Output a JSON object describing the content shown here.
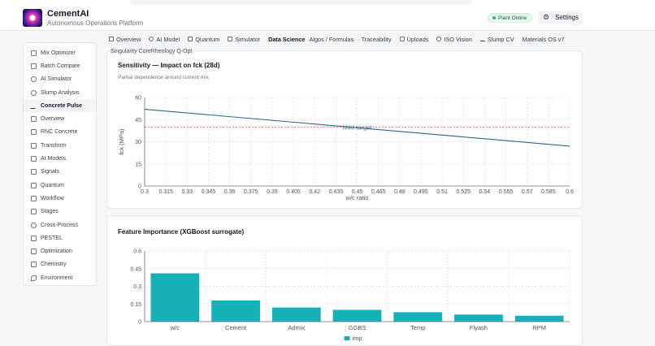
{
  "app": {
    "title": "CementAI",
    "subtitle": "Autonomous Operations Platform",
    "status": "Plant Online",
    "settings_label": "Settings"
  },
  "sidebar": {
    "items": [
      {
        "label": "Mix Optimizer",
        "icon": "file-icon"
      },
      {
        "label": "Batch Compare",
        "icon": "compare-icon"
      },
      {
        "label": "AI Simulator",
        "icon": "play-icon"
      },
      {
        "label": "Slump Analysis",
        "icon": "gauge-icon"
      },
      {
        "label": "Concrete Pulse",
        "icon": "pulse-icon",
        "active": true
      },
      {
        "label": "Overview",
        "icon": "grid-icon"
      },
      {
        "label": "RNC Concrete",
        "icon": "grid-icon"
      },
      {
        "label": "Transform",
        "icon": "file-icon"
      },
      {
        "label": "AI Models",
        "icon": "grid-icon"
      },
      {
        "label": "Signals",
        "icon": "grid-icon"
      },
      {
        "label": "Quantum",
        "icon": "grid-icon"
      },
      {
        "label": "Workflow",
        "icon": "workflow-icon"
      },
      {
        "label": "Stages",
        "icon": "layers-icon"
      },
      {
        "label": "Cross-Process",
        "icon": "share-icon"
      },
      {
        "label": "PESTEL",
        "icon": "grid-icon"
      },
      {
        "label": "Optimization",
        "icon": "sliders-icon"
      },
      {
        "label": "Chemistry",
        "icon": "flask-icon"
      },
      {
        "label": "Environment",
        "icon": "leaf-icon"
      }
    ]
  },
  "tabs": [
    {
      "label": "Overview",
      "icon": "overview-icon"
    },
    {
      "label": "AI Model",
      "icon": "ai-model-icon"
    },
    {
      "label": "Quantum",
      "icon": "quantum-icon"
    },
    {
      "label": "Simulator",
      "icon": "simulator-icon"
    },
    {
      "label": "Data Science",
      "icon": "",
      "active": true
    },
    {
      "label": "Algos / Formulas",
      "icon": ""
    },
    {
      "label": "· Traceability",
      "icon": ""
    },
    {
      "label": "Uploads",
      "icon": "upload-icon"
    },
    {
      "label": "ISO Vision",
      "icon": "vision-icon"
    },
    {
      "label": "Slump CV",
      "icon": "pulse-icon"
    },
    {
      "label": "Materials OS v7",
      "icon": ""
    }
  ],
  "breadcrumb": "Singularity CoreRheology Q-Opt",
  "sensitivity_card": {
    "title": "Sensitivity — Impact on fck (28d)",
    "subtitle": "Partial dependence around current mix"
  },
  "importance_card": {
    "title": "Feature Importance (XGBoost surrogate)"
  },
  "chart_data": [
    {
      "type": "line",
      "xlabel": "w/c ratio",
      "ylabel": "fck (MPa)",
      "xlim": [
        0.3,
        0.6
      ],
      "ylim": [
        0,
        60
      ],
      "x_ticks": [
        0.3,
        0.315,
        0.33,
        0.345,
        0.36,
        0.375,
        0.39,
        0.405,
        0.42,
        0.435,
        0.45,
        0.465,
        0.48,
        0.495,
        0.51,
        0.525,
        0.54,
        0.555,
        0.57,
        0.585,
        0.6
      ],
      "y_ticks": [
        0,
        15,
        30,
        45,
        60
      ],
      "series": [
        {
          "x": [
            0.3,
            0.6
          ],
          "y": [
            52,
            27
          ],
          "color": "#2a6690"
        }
      ],
      "reference_line": {
        "y": 40,
        "label": "M40 target",
        "color": "#e05a6a"
      },
      "grid": true
    },
    {
      "type": "bar",
      "categories": [
        "w/c",
        "Cement",
        "Admix",
        "GGBS",
        "Temp",
        "Flyash",
        "RPM"
      ],
      "series": [
        {
          "name": "imp",
          "values": [
            0.41,
            0.18,
            0.12,
            0.1,
            0.08,
            0.06,
            0.05
          ],
          "color": "#15b0b8"
        }
      ],
      "ylim": [
        0,
        0.6
      ],
      "y_ticks": [
        0,
        0.15,
        0.3,
        0.45,
        0.6
      ],
      "legend": "bottom-center",
      "grid": true
    }
  ]
}
